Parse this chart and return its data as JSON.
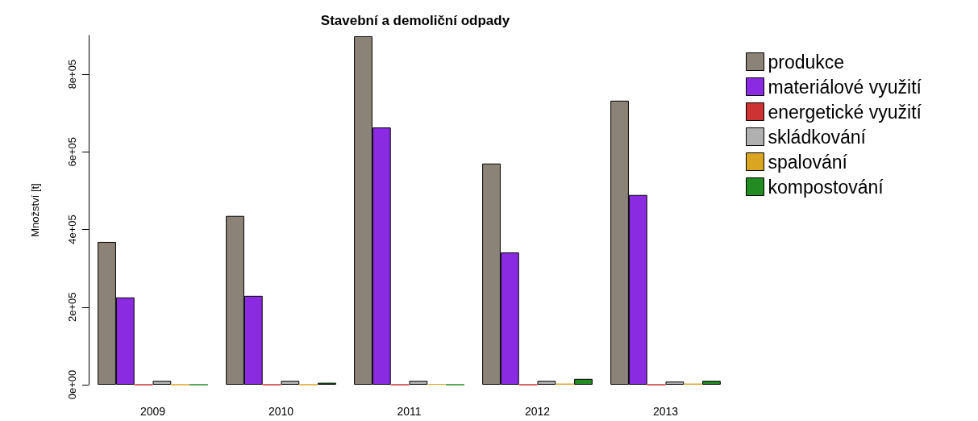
{
  "chart_data": {
    "type": "bar",
    "title": "Stavební a demoliční odpady",
    "ylabel": "Množství [t]",
    "categories": [
      "2009",
      "2010",
      "2011",
      "2012",
      "2013"
    ],
    "series": [
      {
        "name": "produkce",
        "color": "#8b8378",
        "values": [
          368000,
          435000,
          898000,
          570000,
          732000
        ]
      },
      {
        "name": "materiálové využití",
        "color": "#8a2be2",
        "values": [
          225000,
          229000,
          663000,
          341000,
          489000
        ]
      },
      {
        "name": "energetické využití",
        "color": "#cd3333",
        "values": [
          0,
          0,
          0,
          0,
          0
        ]
      },
      {
        "name": "skládkování",
        "color": "#b0b0b0",
        "values": [
          10000,
          10000,
          10000,
          10000,
          8000
        ]
      },
      {
        "name": "spalování",
        "color": "#daa520",
        "values": [
          0,
          0,
          2000,
          3000,
          3000
        ]
      },
      {
        "name": "kompostování",
        "color": "#228b22",
        "values": [
          0,
          5000,
          0,
          15000,
          10000
        ]
      }
    ],
    "ylim": [
      0,
      900000
    ],
    "yticks": [
      {
        "value": 0,
        "label": "0e+00"
      },
      {
        "value": 200000,
        "label": "2e+05"
      },
      {
        "value": 400000,
        "label": "4e+05"
      },
      {
        "value": 600000,
        "label": "6e+05"
      },
      {
        "value": 800000,
        "label": "8e+05"
      }
    ],
    "grid": false,
    "legend": "right"
  }
}
